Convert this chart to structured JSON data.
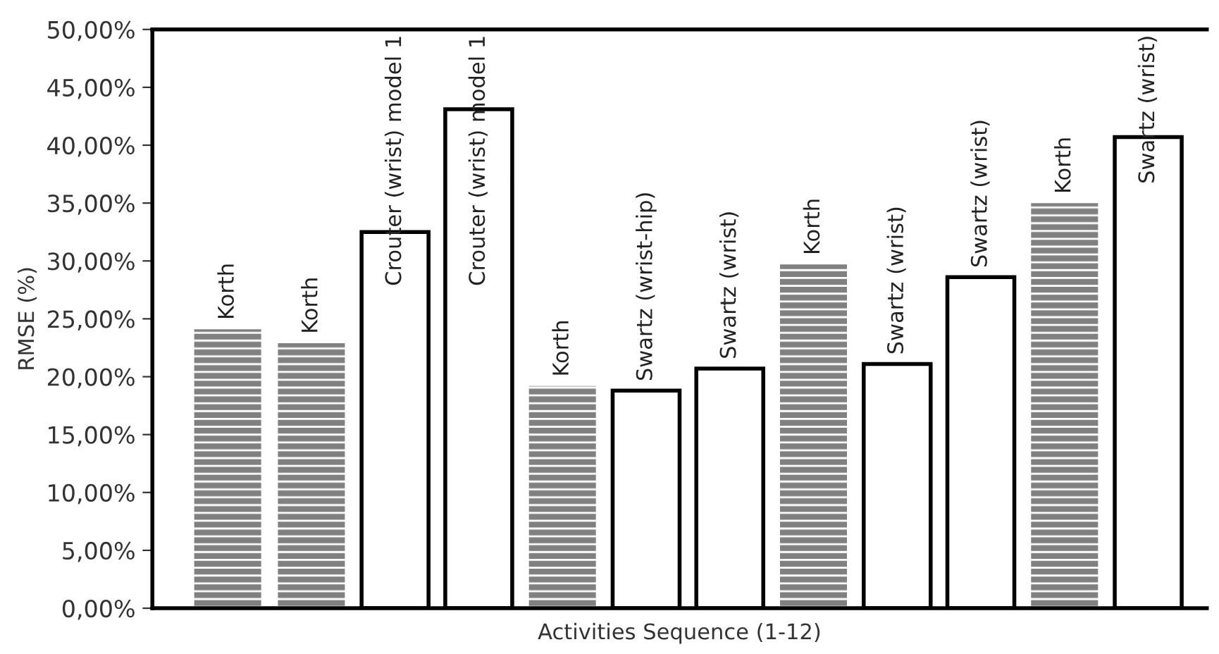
{
  "chart_data": {
    "type": "bar",
    "xlabel": "Activities Sequence (1-12)",
    "ylabel": "RMSE (%)",
    "categories": [
      null,
      null,
      null,
      null,
      null,
      null,
      null,
      null,
      null,
      null,
      null,
      null
    ],
    "values": [
      24.1,
      22.9,
      32.5,
      43.1,
      19.2,
      18.8,
      20.7,
      29.7,
      21.1,
      28.6,
      35.0,
      40.7
    ],
    "colors": [
      "#808080",
      "#808080",
      "#ffffff",
      "#ffffff",
      "#808080",
      "#ffffff",
      "#ffffff",
      "#808080",
      "#ffffff",
      "#ffffff",
      "#808080",
      "#ffffff"
    ],
    "value_labels": [
      "Korth",
      "Korth",
      "Crouter (wrist) model 1",
      "Crouter (wrist) model 1",
      "Korth",
      "Swartz (wrist-hip)",
      "Swartz (wrist)",
      "Korth",
      "Swartz (wrist)",
      "Swartz (wrist)",
      "Korth",
      "Swartz (wrist)"
    ],
    "ylim": [
      0,
      50
    ],
    "yticks": [
      {
        "value": 0,
        "label": "0,00%"
      },
      {
        "value": 5,
        "label": "5,00%"
      },
      {
        "value": 10,
        "label": "10,00%"
      },
      {
        "value": 15,
        "label": "15,00%"
      },
      {
        "value": 20,
        "label": "20,00%"
      },
      {
        "value": 25,
        "label": "25,00%"
      },
      {
        "value": 30,
        "label": "30,00%"
      },
      {
        "value": 35,
        "label": "35,00%"
      },
      {
        "value": 40,
        "label": "40,00%"
      },
      {
        "value": 45,
        "label": "45,00%"
      },
      {
        "value": 50,
        "label": "50,00%"
      }
    ],
    "grid": false,
    "legend": false
  }
}
